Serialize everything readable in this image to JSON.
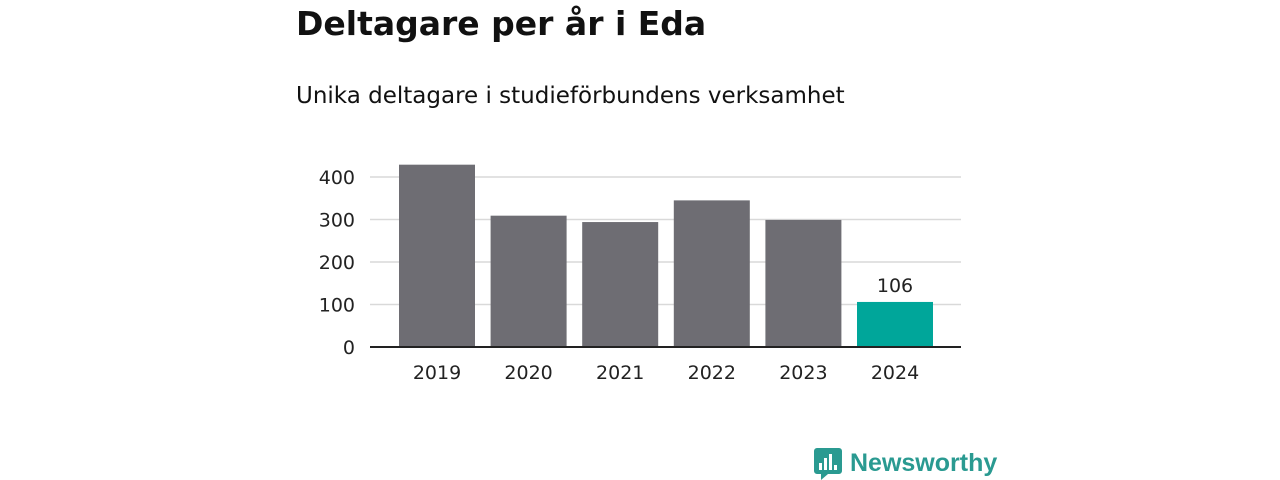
{
  "header": {
    "title": "Deltagare per år i Eda",
    "subtitle": "Unika deltagare i studieförbundens verksamhet"
  },
  "chart_data": {
    "type": "bar",
    "categories": [
      "2019",
      "2020",
      "2021",
      "2022",
      "2023",
      "2024"
    ],
    "values": [
      429,
      309,
      294,
      345,
      299,
      106
    ],
    "highlight_index": 5,
    "data_labels": [
      {
        "index": 5,
        "text": "106"
      }
    ],
    "ylim": [
      0,
      400
    ],
    "yticks": [
      "0",
      "100",
      "200",
      "300",
      "400"
    ],
    "grid": true,
    "bar_color": "#6e6d73",
    "highlight_color": "#00a69a",
    "title": "",
    "xlabel": "",
    "ylabel": ""
  },
  "logo": {
    "text": "Newsworthy",
    "icon": "newsworthy-logo-icon",
    "color": "#2a9a91"
  }
}
